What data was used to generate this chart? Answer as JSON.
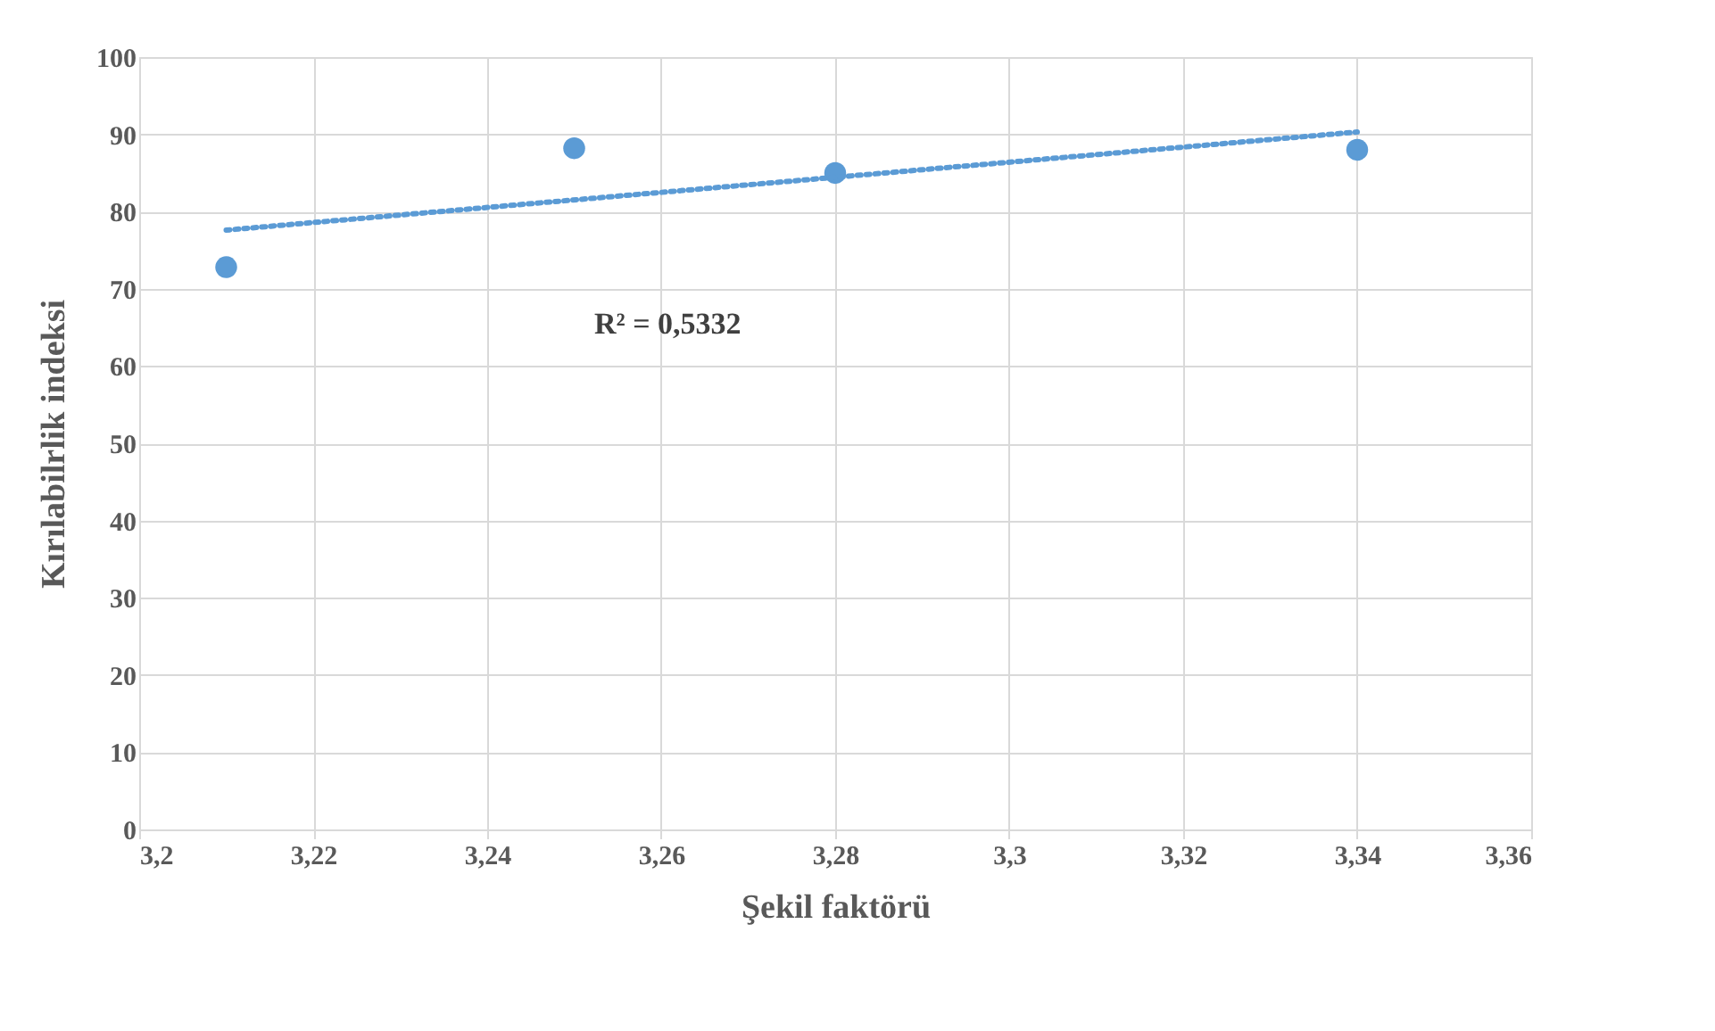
{
  "chart_data": {
    "type": "scatter",
    "xlabel": "Şekil faktörü",
    "ylabel": "Kırılabilrlik  indeksi",
    "x": [
      3.21,
      3.25,
      3.28,
      3.34
    ],
    "series": [
      {
        "color": "#5b9bd5",
        "values": [
          72.8,
          88.2,
          85.0,
          88.0
        ],
        "marker": "circle"
      },
      {
        "type": "line",
        "color": "#5b9bd5",
        "x": [
          3.21,
          3.34
        ],
        "values": [
          77.6,
          90.3
        ],
        "line_style": "dotted",
        "marker": "none"
      }
    ],
    "xlim": [
      3.2,
      3.36
    ],
    "xticks": [
      {
        "value": 3.2,
        "label": "3,2"
      },
      {
        "value": 3.22,
        "label": "3,22"
      },
      {
        "value": 3.24,
        "label": "3,24"
      },
      {
        "value": 3.26,
        "label": "3,26"
      },
      {
        "value": 3.28,
        "label": "3,28"
      },
      {
        "value": 3.3,
        "label": "3,3"
      },
      {
        "value": 3.32,
        "label": "3,32"
      },
      {
        "value": 3.34,
        "label": "3,34"
      },
      {
        "value": 3.36,
        "label": "3,36"
      }
    ],
    "ylim": [
      0,
      100
    ],
    "yticks": [
      0,
      10,
      20,
      30,
      40,
      50,
      60,
      70,
      80,
      90,
      100
    ],
    "grid": true,
    "annotations": [
      "R² = 0,5332"
    ]
  }
}
